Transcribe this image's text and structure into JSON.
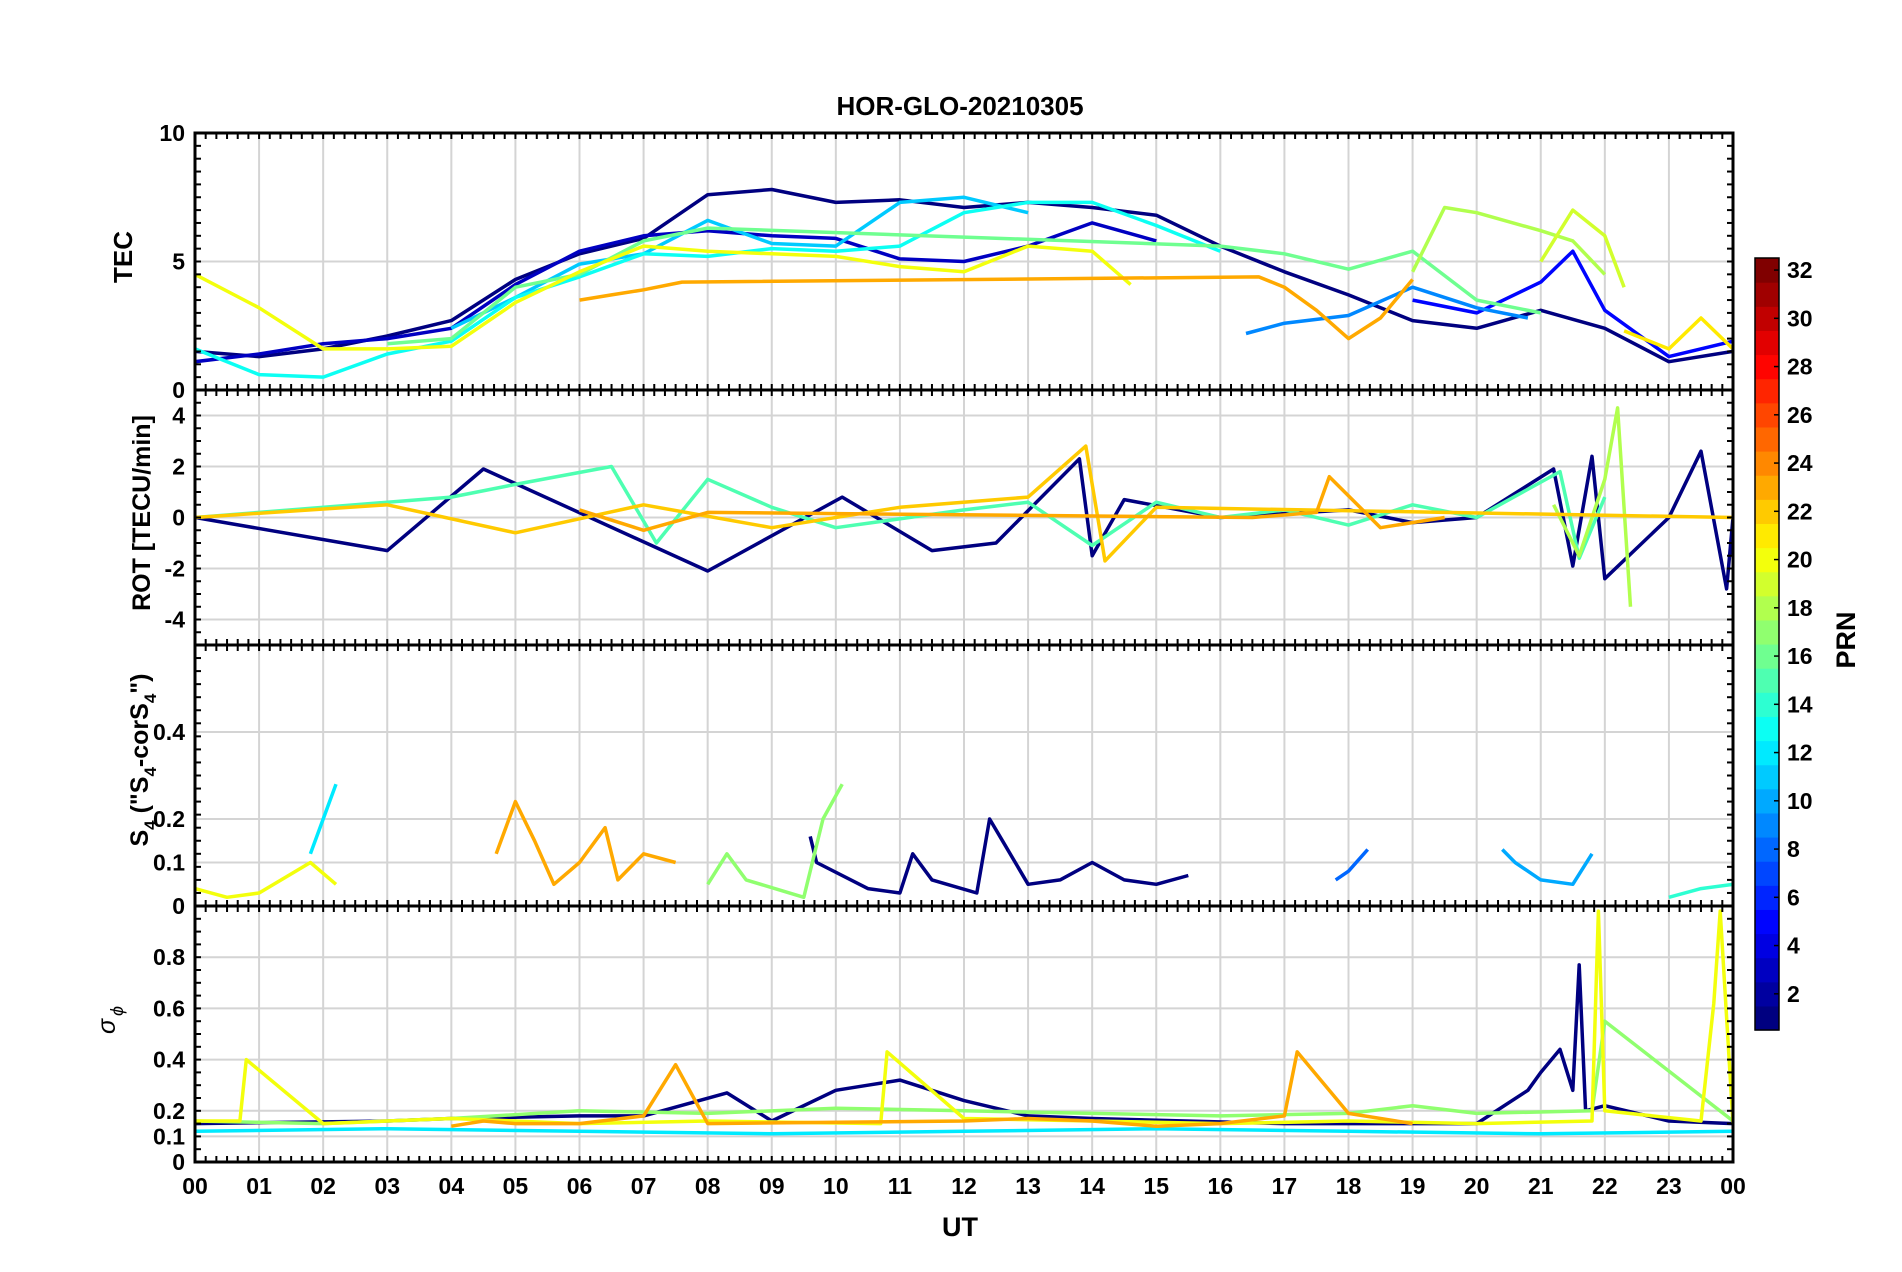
{
  "figure": {
    "title": "HOR-GLO-20210305",
    "xlabel": "UT",
    "x_tick_labels": [
      "00",
      "01",
      "02",
      "03",
      "04",
      "05",
      "06",
      "07",
      "08",
      "09",
      "10",
      "11",
      "12",
      "13",
      "14",
      "15",
      "16",
      "17",
      "18",
      "19",
      "20",
      "21",
      "22",
      "23",
      "00"
    ]
  },
  "colorbar": {
    "label": "PRN",
    "colormap": "jet",
    "range": [
      1,
      32
    ],
    "tick_labels": [
      "2",
      "4",
      "6",
      "8",
      "10",
      "12",
      "14",
      "16",
      "18",
      "20",
      "22",
      "24",
      "26",
      "28",
      "30",
      "32"
    ]
  },
  "chart_data": [
    {
      "type": "line",
      "panel": "TEC",
      "ylabel": "TEC",
      "xlim": [
        0,
        24
      ],
      "ylim": [
        0,
        10
      ],
      "y_tick_labels": [
        "0",
        "5",
        "10"
      ],
      "grid": true,
      "series": [
        {
          "prn": 1,
          "x": [
            0,
            1,
            2,
            3,
            4,
            5,
            6,
            7,
            8,
            9,
            10,
            11,
            12,
            13,
            14,
            15,
            16,
            17,
            18,
            19,
            20,
            21,
            22,
            23,
            24
          ],
          "values": [
            1.5,
            1.3,
            1.6,
            2.1,
            2.7,
            4.3,
            5.3,
            5.9,
            7.6,
            7.8,
            7.3,
            7.4,
            7.1,
            7.3,
            7.1,
            6.8,
            5.6,
            4.6,
            3.7,
            2.7,
            2.4,
            3.1,
            2.4,
            1.1,
            1.5
          ]
        },
        {
          "prn": 3,
          "x": [
            0,
            1,
            2,
            3,
            4,
            5,
            6,
            7,
            8,
            9,
            10,
            11,
            12,
            13,
            14,
            15
          ],
          "values": [
            1.1,
            1.4,
            1.8,
            2.0,
            2.4,
            4.1,
            5.4,
            6.0,
            6.2,
            6.0,
            5.9,
            5.1,
            5.0,
            5.6,
            6.5,
            5.8
          ]
        },
        {
          "prn": 5,
          "x": [
            19,
            20,
            21,
            21.5,
            22,
            23,
            24
          ],
          "values": [
            3.5,
            3.0,
            4.2,
            5.4,
            3.1,
            1.3,
            1.9
          ]
        },
        {
          "prn": 9,
          "x": [
            16.4,
            17,
            18,
            19,
            20,
            20.8
          ],
          "values": [
            2.2,
            2.6,
            2.9,
            4.0,
            3.2,
            2.8
          ]
        },
        {
          "prn": 11,
          "x": [
            4,
            5,
            6,
            7,
            8,
            9,
            10,
            11,
            12,
            13
          ],
          "values": [
            2.4,
            3.6,
            4.9,
            5.3,
            6.6,
            5.7,
            5.6,
            7.3,
            7.5,
            6.9
          ]
        },
        {
          "prn": 13,
          "x": [
            0,
            1,
            2,
            3,
            4,
            5,
            6,
            7,
            8,
            9,
            10,
            11,
            12,
            13,
            14,
            15,
            16
          ],
          "values": [
            1.6,
            0.6,
            0.5,
            1.4,
            1.9,
            3.6,
            4.4,
            5.3,
            5.2,
            5.5,
            5.4,
            5.6,
            6.9,
            7.3,
            7.3,
            6.4,
            5.4
          ]
        },
        {
          "prn": 16,
          "x": [
            3,
            4,
            5,
            6,
            7,
            8,
            16,
            17,
            18,
            19,
            20,
            21
          ],
          "values": [
            1.8,
            2.0,
            4.0,
            4.5,
            5.8,
            6.3,
            5.6,
            5.3,
            4.7,
            5.4,
            3.5,
            3.0
          ]
        },
        {
          "prn": 18,
          "x": [
            19,
            19.5,
            20,
            21,
            21.5,
            22
          ],
          "values": [
            4.6,
            7.1,
            6.9,
            6.2,
            5.8,
            4.5
          ]
        },
        {
          "prn": 19,
          "x": [
            21,
            21.5,
            22,
            22.3
          ],
          "values": [
            5.0,
            7.0,
            6.0,
            4.0
          ]
        },
        {
          "prn": 20,
          "x": [
            0,
            1,
            2,
            3,
            4,
            5,
            6,
            7,
            8,
            9,
            10,
            11,
            12,
            13,
            14,
            14.6
          ],
          "values": [
            4.5,
            3.2,
            1.6,
            1.6,
            1.7,
            3.4,
            4.6,
            5.6,
            5.4,
            5.3,
            5.2,
            4.8,
            4.6,
            5.6,
            5.4,
            4.1
          ]
        },
        {
          "prn": 21,
          "x": [
            22.3,
            23,
            23.5,
            24
          ],
          "values": [
            2.3,
            1.6,
            2.8,
            1.6
          ]
        },
        {
          "prn": 23,
          "x": [
            6,
            6.5,
            7,
            7.6,
            16.6,
            17,
            17.5,
            18,
            18.5,
            19
          ],
          "values": [
            3.5,
            3.7,
            3.9,
            4.2,
            4.4,
            4.0,
            3.1,
            2.0,
            2.8,
            4.3
          ]
        }
      ]
    },
    {
      "type": "line",
      "panel": "ROT",
      "ylabel": "ROT [TECU/min]",
      "xlim": [
        0,
        24
      ],
      "ylim": [
        -5,
        5
      ],
      "y_tick_labels": [
        "-4",
        "-2",
        "0",
        "2",
        "4"
      ],
      "grid": true,
      "series": [
        {
          "prn": 1,
          "x": [
            0,
            3,
            4.5,
            8,
            10.1,
            11.5,
            12.5,
            13.8,
            14,
            14.5,
            16,
            18,
            19,
            20,
            21.2,
            21.5,
            21.8,
            22,
            23,
            23.5,
            23.9,
            24
          ],
          "values": [
            0,
            -1.3,
            1.9,
            -2.1,
            0.8,
            -1.3,
            -1.0,
            2.3,
            -1.5,
            0.7,
            0,
            0.3,
            -0.2,
            0,
            1.9,
            -1.9,
            2.4,
            -2.4,
            0,
            2.6,
            -2.8,
            0
          ]
        },
        {
          "prn": 15,
          "x": [
            0,
            4,
            5,
            6.5,
            7.2,
            8,
            9,
            10,
            12,
            13,
            14,
            15,
            16,
            17,
            18,
            19,
            20,
            21.3,
            21.6,
            22
          ],
          "values": [
            0,
            0.8,
            1.3,
            2.0,
            -1.0,
            1.5,
            0.4,
            -0.4,
            0.3,
            0.6,
            -1.1,
            0.6,
            0,
            0.3,
            -0.3,
            0.5,
            0,
            1.8,
            -1.6,
            0.8
          ]
        },
        {
          "prn": 18,
          "x": [
            21.2,
            21.6,
            22,
            22.2,
            22.4
          ],
          "values": [
            0.5,
            -1.5,
            1.5,
            4.3,
            -3.5
          ]
        },
        {
          "prn": 22,
          "x": [
            0,
            3,
            5,
            7,
            9,
            11,
            13,
            13.9,
            14.2,
            15,
            24
          ],
          "values": [
            0,
            0.5,
            -0.6,
            0.5,
            -0.4,
            0.4,
            0.8,
            2.8,
            -1.7,
            0.4,
            0
          ]
        },
        {
          "prn": 23,
          "x": [
            6,
            7,
            8,
            16.5,
            17.5,
            17.7,
            18.5,
            19.5
          ],
          "values": [
            0.3,
            -0.5,
            0.2,
            0,
            0.2,
            1.6,
            -0.4,
            0
          ]
        }
      ]
    },
    {
      "type": "line",
      "panel": "S4",
      "ylabel": "S4 (\"S4-corS4\")",
      "xlim": [
        0,
        24
      ],
      "ylim": [
        0,
        0.6
      ],
      "y_tick_labels": [
        "0",
        "0.1",
        "0.2",
        "0.4"
      ],
      "grid": true,
      "series": [
        {
          "prn": 1,
          "x": [
            9.6,
            9.7,
            10.5,
            11,
            11.2,
            11.5,
            12.2,
            12.4,
            12.6,
            13,
            13.5,
            14,
            14.5,
            15,
            15.5
          ],
          "values": [
            0.16,
            0.1,
            0.04,
            0.03,
            0.12,
            0.06,
            0.03,
            0.2,
            0.15,
            0.05,
            0.06,
            0.1,
            0.06,
            0.05,
            0.07
          ]
        },
        {
          "prn": 8,
          "x": [
            17.8,
            18,
            18.3
          ],
          "values": [
            0.06,
            0.08,
            0.13
          ]
        },
        {
          "prn": 10,
          "x": [
            20.4,
            20.6,
            21,
            21.5,
            21.8
          ],
          "values": [
            0.13,
            0.1,
            0.06,
            0.05,
            0.12
          ]
        },
        {
          "prn": 12,
          "x": [
            1.8,
            2,
            2.2
          ],
          "values": [
            0.12,
            0.2,
            0.28
          ]
        },
        {
          "prn": 14,
          "x": [
            23,
            23.5,
            24
          ],
          "values": [
            0.02,
            0.04,
            0.05
          ]
        },
        {
          "prn": 17,
          "x": [
            8,
            8.3,
            8.6,
            9.5,
            9.8,
            10.1
          ],
          "values": [
            0.05,
            0.12,
            0.06,
            0.02,
            0.2,
            0.28
          ]
        },
        {
          "prn": 20,
          "x": [
            0,
            0.5,
            1,
            1.8,
            2.2
          ],
          "values": [
            0.04,
            0.02,
            0.03,
            0.1,
            0.05
          ]
        },
        {
          "prn": 23,
          "x": [
            4.7,
            5,
            5.3,
            5.6,
            6,
            6.4,
            6.6,
            7,
            7.5
          ],
          "values": [
            0.12,
            0.24,
            0.15,
            0.05,
            0.1,
            0.18,
            0.06,
            0.12,
            0.1
          ]
        }
      ]
    },
    {
      "type": "line",
      "panel": "sigma_phi",
      "ylabel": "σ ϕ",
      "xlim": [
        0,
        24
      ],
      "ylim": [
        0,
        1
      ],
      "y_tick_labels": [
        "0",
        "0.1",
        "0.2",
        "0.4",
        "0.6",
        "0.8"
      ],
      "grid": true,
      "series": [
        {
          "prn": 1,
          "x": [
            0,
            3,
            4,
            6,
            7,
            8.3,
            9,
            10,
            10.5,
            11,
            12,
            13,
            14,
            17,
            20,
            20.8,
            21,
            21.3,
            21.5,
            21.6,
            21.7,
            22,
            23,
            24
          ],
          "values": [
            0.15,
            0.16,
            0.17,
            0.18,
            0.18,
            0.27,
            0.16,
            0.28,
            0.3,
            0.32,
            0.24,
            0.18,
            0.17,
            0.15,
            0.15,
            0.28,
            0.35,
            0.44,
            0.28,
            0.77,
            0.2,
            0.22,
            0.16,
            0.15
          ]
        },
        {
          "prn": 12,
          "x": [
            0,
            3,
            6,
            9,
            12,
            15,
            18,
            21,
            24
          ],
          "values": [
            0.12,
            0.13,
            0.12,
            0.11,
            0.12,
            0.13,
            0.12,
            0.11,
            0.12
          ]
        },
        {
          "prn": 17,
          "x": [
            0,
            2,
            4,
            6,
            8,
            10,
            12,
            14,
            16,
            18,
            19,
            20,
            21.8,
            22,
            24
          ],
          "values": [
            0.16,
            0.15,
            0.17,
            0.2,
            0.19,
            0.21,
            0.2,
            0.19,
            0.18,
            0.19,
            0.22,
            0.19,
            0.2,
            0.55,
            0.16
          ]
        },
        {
          "prn": 20,
          "x": [
            0,
            0.7,
            0.8,
            2,
            4,
            6,
            8,
            10.7,
            10.8,
            12,
            14,
            16,
            18,
            20,
            21.8,
            21.9,
            22,
            23.5,
            23.7,
            23.8,
            24
          ],
          "values": [
            0.16,
            0.16,
            0.4,
            0.15,
            0.17,
            0.15,
            0.16,
            0.15,
            0.43,
            0.17,
            0.16,
            0.15,
            0.16,
            0.15,
            0.16,
            0.98,
            0.2,
            0.16,
            0.62,
            0.98,
            0.15
          ]
        },
        {
          "prn": 23,
          "x": [
            4,
            4.5,
            5,
            6,
            7,
            7.5,
            8,
            12,
            13,
            14,
            15,
            16,
            17,
            17.2,
            18,
            19
          ],
          "values": [
            0.14,
            0.16,
            0.15,
            0.15,
            0.18,
            0.38,
            0.15,
            0.16,
            0.17,
            0.16,
            0.14,
            0.15,
            0.18,
            0.43,
            0.19,
            0.15
          ]
        }
      ]
    }
  ]
}
